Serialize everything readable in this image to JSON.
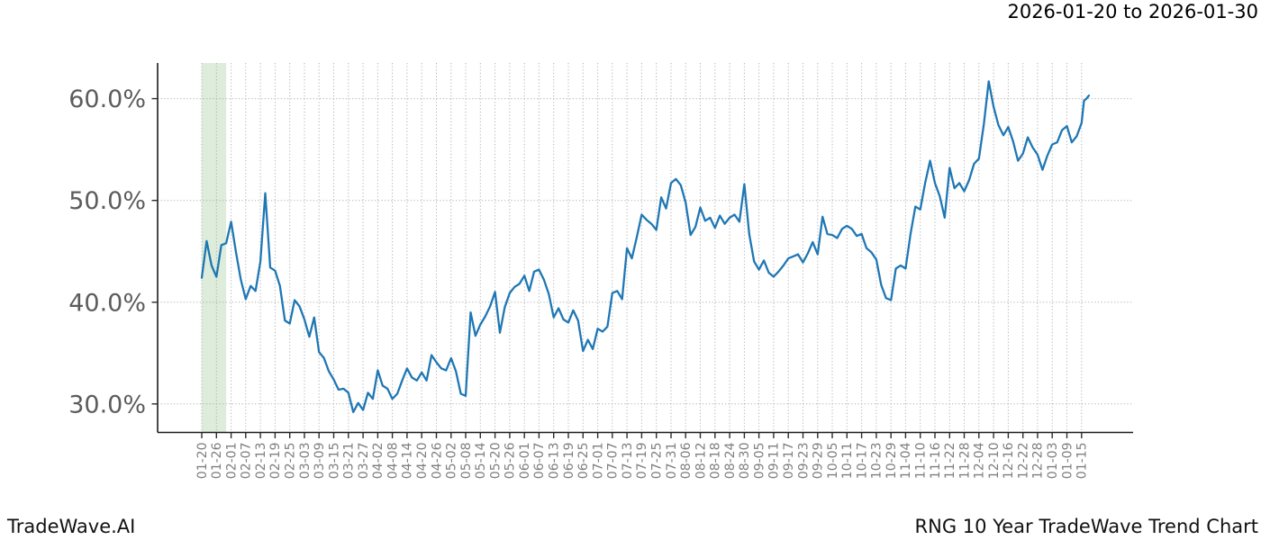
{
  "header": {
    "date_range": "2026-01-20 to 2026-01-30"
  },
  "footer": {
    "brand": "TradeWave.AI",
    "chart_title": "RNG 10 Year TradeWave Trend Chart"
  },
  "colors": {
    "line": "#1f77b4",
    "highlight_band": "#ddecdb",
    "grid": "#b0b0b0",
    "spine": "#1c1c1c",
    "tick_mark": "#2b2b2b",
    "x_tick_label": "#7f7f7f",
    "y_tick_label": "#5c5c5c",
    "background": "#ffffff"
  },
  "axes": {
    "y_tick_labels": [
      "30.0%",
      "40.0%",
      "50.0%",
      "60.0%"
    ],
    "y_tick_values": [
      30,
      40,
      50,
      60
    ],
    "x_tick_labels": [
      "01-20",
      "01-26",
      "02-01",
      "02-07",
      "02-13",
      "02-19",
      "02-25",
      "03-03",
      "03-09",
      "03-15",
      "03-21",
      "03-27",
      "04-02",
      "04-08",
      "04-14",
      "04-20",
      "04-26",
      "05-02",
      "05-08",
      "05-14",
      "05-20",
      "05-26",
      "06-01",
      "06-07",
      "06-13",
      "06-19",
      "06-25",
      "07-01",
      "07-07",
      "07-13",
      "07-19",
      "07-25",
      "07-31",
      "08-06",
      "08-12",
      "08-18",
      "08-24",
      "08-30",
      "09-05",
      "09-11",
      "09-17",
      "09-23",
      "09-29",
      "10-05",
      "10-11",
      "10-17",
      "10-23",
      "10-29",
      "11-04",
      "11-10",
      "11-16",
      "11-22",
      "11-28",
      "12-04",
      "12-10",
      "12-16",
      "12-22",
      "12-28",
      "01-03",
      "01-09",
      "01-15"
    ]
  },
  "chart_data": {
    "type": "line",
    "title": "RNG 10 Year TradeWave Trend Chart",
    "xlabel": "",
    "ylabel": "",
    "grid": true,
    "legend_position": "none",
    "ylim": [
      27.2,
      63.5
    ],
    "highlight_band": {
      "start": "01-20",
      "end": "01-30"
    },
    "x": [
      "01-20",
      "01-22",
      "01-24",
      "01-26",
      "01-28",
      "01-30",
      "02-01",
      "02-03",
      "02-05",
      "02-07",
      "02-09",
      "02-11",
      "02-13",
      "02-15",
      "02-17",
      "02-19",
      "02-21",
      "02-23",
      "02-25",
      "02-27",
      "03-01",
      "03-03",
      "03-05",
      "03-07",
      "03-09",
      "03-11",
      "03-13",
      "03-15",
      "03-17",
      "03-19",
      "03-21",
      "03-23",
      "03-25",
      "03-27",
      "03-29",
      "03-31",
      "04-02",
      "04-04",
      "04-06",
      "04-08",
      "04-10",
      "04-12",
      "04-14",
      "04-16",
      "04-18",
      "04-20",
      "04-22",
      "04-24",
      "04-26",
      "04-28",
      "04-30",
      "05-02",
      "05-04",
      "05-06",
      "05-08",
      "05-10",
      "05-12",
      "05-14",
      "05-16",
      "05-18",
      "05-20",
      "05-22",
      "05-24",
      "05-26",
      "05-28",
      "05-30",
      "06-01",
      "06-03",
      "06-05",
      "06-07",
      "06-09",
      "06-11",
      "06-13",
      "06-15",
      "06-17",
      "06-19",
      "06-21",
      "06-23",
      "06-25",
      "06-27",
      "06-29",
      "07-01",
      "07-03",
      "07-05",
      "07-07",
      "07-09",
      "07-11",
      "07-13",
      "07-15",
      "07-17",
      "07-19",
      "07-21",
      "07-23",
      "07-25",
      "07-27",
      "07-29",
      "07-31",
      "08-02",
      "08-04",
      "08-06",
      "08-08",
      "08-10",
      "08-12",
      "08-14",
      "08-16",
      "08-18",
      "08-20",
      "08-22",
      "08-24",
      "08-26",
      "08-28",
      "08-30",
      "09-01",
      "09-03",
      "09-05",
      "09-07",
      "09-09",
      "09-11",
      "09-13",
      "09-15",
      "09-17",
      "09-19",
      "09-21",
      "09-23",
      "09-25",
      "09-27",
      "09-29",
      "10-01",
      "10-03",
      "10-05",
      "10-07",
      "10-09",
      "10-11",
      "10-13",
      "10-15",
      "10-17",
      "10-19",
      "10-21",
      "10-23",
      "10-25",
      "10-27",
      "10-29",
      "10-31",
      "11-02",
      "11-04",
      "11-06",
      "11-08",
      "11-10",
      "11-12",
      "11-14",
      "11-16",
      "11-18",
      "11-20",
      "11-22",
      "11-24",
      "11-26",
      "11-28",
      "11-30",
      "12-02",
      "12-04",
      "12-06",
      "12-08",
      "12-10",
      "12-12",
      "12-14",
      "12-16",
      "12-18",
      "12-20",
      "12-22",
      "12-24",
      "12-26",
      "12-28",
      "12-30",
      "01-01",
      "01-03",
      "01-05",
      "01-07",
      "01-09",
      "01-11",
      "01-13",
      "01-15",
      "01-16",
      "01-17",
      "01-18"
    ],
    "y": [
      42.4,
      46.0,
      43.6,
      42.5,
      45.6,
      45.8,
      47.9,
      44.9,
      42.2,
      40.3,
      41.6,
      41.1,
      44.0,
      50.7,
      43.4,
      43.1,
      41.6,
      38.2,
      37.9,
      40.2,
      39.6,
      38.3,
      36.6,
      38.5,
      35.1,
      34.5,
      33.2,
      32.4,
      31.4,
      31.5,
      31.1,
      29.2,
      30.1,
      29.4,
      31.1,
      30.5,
      33.3,
      31.8,
      31.5,
      30.5,
      31.0,
      32.3,
      33.5,
      32.6,
      32.3,
      33.1,
      32.3,
      34.8,
      34.1,
      33.5,
      33.3,
      34.5,
      33.2,
      31.0,
      30.8,
      39.0,
      36.7,
      37.8,
      38.6,
      39.6,
      41.0,
      37.0,
      39.5,
      40.9,
      41.5,
      41.8,
      42.6,
      41.1,
      43.0,
      43.2,
      42.2,
      40.8,
      38.5,
      39.4,
      38.3,
      38.0,
      39.2,
      38.2,
      35.2,
      36.3,
      35.4,
      37.4,
      37.1,
      37.6,
      40.9,
      41.1,
      40.3,
      45.3,
      44.3,
      46.4,
      48.6,
      48.1,
      47.7,
      47.1,
      50.3,
      49.2,
      51.7,
      52.1,
      51.5,
      49.8,
      46.6,
      47.4,
      49.3,
      48.0,
      48.3,
      47.3,
      48.5,
      47.7,
      48.3,
      48.6,
      47.9,
      51.6,
      46.7,
      44.0,
      43.2,
      44.1,
      42.9,
      42.5,
      43.0,
      43.6,
      44.3,
      44.5,
      44.7,
      43.9,
      44.8,
      45.9,
      44.7,
      48.4,
      46.7,
      46.6,
      46.3,
      47.2,
      47.5,
      47.2,
      46.5,
      46.7,
      45.3,
      44.9,
      44.2,
      41.7,
      40.4,
      40.2,
      43.3,
      43.6,
      43.3,
      46.7,
      49.4,
      49.1,
      51.7,
      53.9,
      51.7,
      50.4,
      48.3,
      53.2,
      51.2,
      51.7,
      50.9,
      52.0,
      53.6,
      54.1,
      57.5,
      61.7,
      59.2,
      57.4,
      56.4,
      57.2,
      55.8,
      53.9,
      54.6,
      56.2,
      55.2,
      54.5,
      53.0,
      54.4,
      55.5,
      55.7,
      56.9,
      57.3,
      55.7,
      56.3,
      57.6,
      59.8,
      60.0,
      60.3
    ]
  }
}
